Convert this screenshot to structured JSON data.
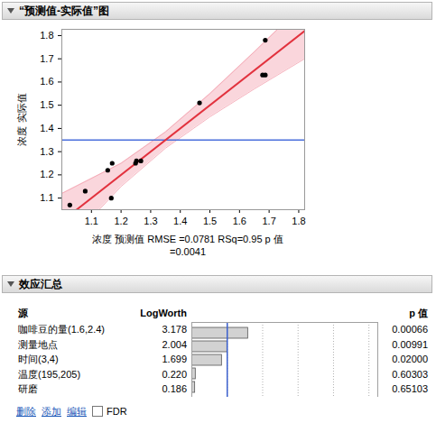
{
  "chart_data": [
    {
      "type": "scatter",
      "title": "“预测值-实际值”图",
      "x_label": "浓度 预测值 RMSE =0.0781 RSq=0.95 p 值=0.0041",
      "y_label": "浓度 实际值",
      "x": [
        1.027,
        1.079,
        1.155,
        1.17,
        1.167,
        1.249,
        1.252,
        1.267,
        1.465,
        1.678,
        1.687,
        1.687
      ],
      "values": [
        1.07,
        1.13,
        1.22,
        1.25,
        1.1,
        1.25,
        1.26,
        1.26,
        1.51,
        1.63,
        1.78,
        1.63
      ],
      "color": "#000000",
      "xlim": [
        1.0,
        1.82
      ],
      "ylim": [
        1.05,
        1.827
      ],
      "xticks": [
        1.1,
        1.2,
        1.3,
        1.4,
        1.5,
        1.6,
        1.7,
        1.8
      ],
      "yticks": [
        1.1,
        1.2,
        1.3,
        1.4,
        1.5,
        1.6,
        1.7,
        1.8
      ],
      "grid": false,
      "fit_line": {
        "x": [
          1.0,
          1.82
        ],
        "y": [
          1.0,
          1.82
        ],
        "color": "#e2323e"
      },
      "confidence_band": {
        "x": [
          1.0,
          1.2,
          1.35,
          1.5,
          1.65,
          1.82
        ],
        "lower": [
          0.88,
          1.15,
          1.315,
          1.45,
          1.57,
          1.7
        ],
        "upper": [
          1.12,
          1.25,
          1.385,
          1.55,
          1.73,
          1.94
        ],
        "color": "#f8c8d0"
      },
      "mean_line": {
        "value": 1.35,
        "color": "#4a6fdc"
      }
    },
    {
      "type": "bar",
      "orientation": "horizontal",
      "title": "效应汇总",
      "columns": [
        "源",
        "LogWorth",
        "p 值"
      ],
      "categories": [
        "咖啡豆的量(1.6,2.4)",
        "测量地点",
        "时间(3,4)",
        "温度(195,205)",
        "研磨"
      ],
      "values": [
        3.178,
        2.004,
        1.699,
        0.22,
        0.186
      ],
      "value_labels": [
        "3.178",
        "2.004",
        "1.699",
        "0.220",
        "0.186"
      ],
      "p_values": [
        "0.00066",
        "0.00991",
        "0.02000",
        "0.60303",
        "0.65103"
      ],
      "data_labels": true,
      "color": "#d2d2d2",
      "xlim": [
        0,
        10.5
      ],
      "xticks": [
        0,
        2,
        4,
        6,
        8,
        10
      ],
      "tick_labels": false,
      "grid": true,
      "reference_line": {
        "value": 2,
        "color": "#3a5fcd"
      },
      "controls": [
        "删除",
        "添加",
        "编辑"
      ],
      "checkbox": "FDR"
    }
  ]
}
